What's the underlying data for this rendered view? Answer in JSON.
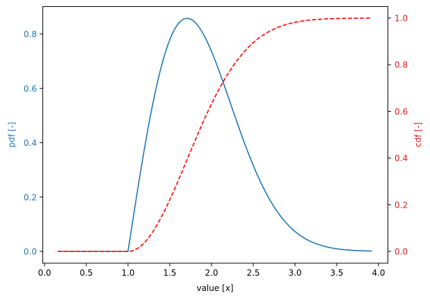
{
  "colors": {
    "pdf": "#1f77b4",
    "cdf": "#ff0000",
    "cdf_text": "#e31a1c",
    "axes": "#000000",
    "background": "#ffffff"
  },
  "chart_data": {
    "type": "line",
    "title": "",
    "xlabel": "value [x]",
    "ylabel": "pdf [-]",
    "ylabel_right": "cdf [-]",
    "xlim": [
      -0.02,
      4.1
    ],
    "ylim": [
      -0.043,
      0.903
    ],
    "ylim_right": [
      -0.05,
      1.05
    ],
    "grid": false,
    "legend": null,
    "x_ticks": [
      "0.0",
      "0.5",
      "1.0",
      "1.5",
      "2.0",
      "2.5",
      "3.0",
      "3.5",
      "4.0"
    ],
    "y_ticks": [
      "0.0",
      "0.2",
      "0.4",
      "0.6",
      "0.8"
    ],
    "y_ticks_right": [
      "0.0",
      "0.2",
      "0.4",
      "0.6",
      "0.8",
      "1.0"
    ],
    "x": [
      0.16,
      0.5,
      1.0,
      1.1,
      1.2,
      1.3,
      1.4,
      1.5,
      1.6,
      1.7,
      1.8,
      1.9,
      2.0,
      2.1,
      2.2,
      2.3,
      2.4,
      2.5,
      2.6,
      2.7,
      2.8,
      2.9,
      3.0,
      3.1,
      3.2,
      3.3,
      3.4,
      3.5,
      3.6,
      3.7,
      3.8,
      3.9,
      3.92
    ],
    "series": [
      {
        "name": "pdf",
        "axis": "left",
        "style": "solid",
        "color": "#1f77b4",
        "values": [
          0,
          0,
          0,
          0.198,
          0.384,
          0.548,
          0.682,
          0.779,
          0.837,
          0.858,
          0.844,
          0.801,
          0.736,
          0.656,
          0.569,
          0.48,
          0.394,
          0.316,
          0.247,
          0.189,
          0.141,
          0.103,
          0.073,
          0.051,
          0.035,
          0.023,
          0.015,
          0.01,
          0.006,
          0.004,
          0.002,
          0.001,
          0.001
        ]
      },
      {
        "name": "cdf",
        "axis": "right",
        "style": "dashed",
        "color": "#ff0000",
        "values": [
          0,
          0,
          0,
          0.01,
          0.039,
          0.086,
          0.148,
          0.221,
          0.302,
          0.387,
          0.473,
          0.555,
          0.632,
          0.702,
          0.763,
          0.816,
          0.859,
          0.895,
          0.923,
          0.944,
          0.961,
          0.973,
          0.982,
          0.988,
          0.992,
          0.995,
          0.997,
          0.998,
          0.999,
          0.9993,
          0.9996,
          0.9998,
          0.9998
        ]
      }
    ]
  }
}
